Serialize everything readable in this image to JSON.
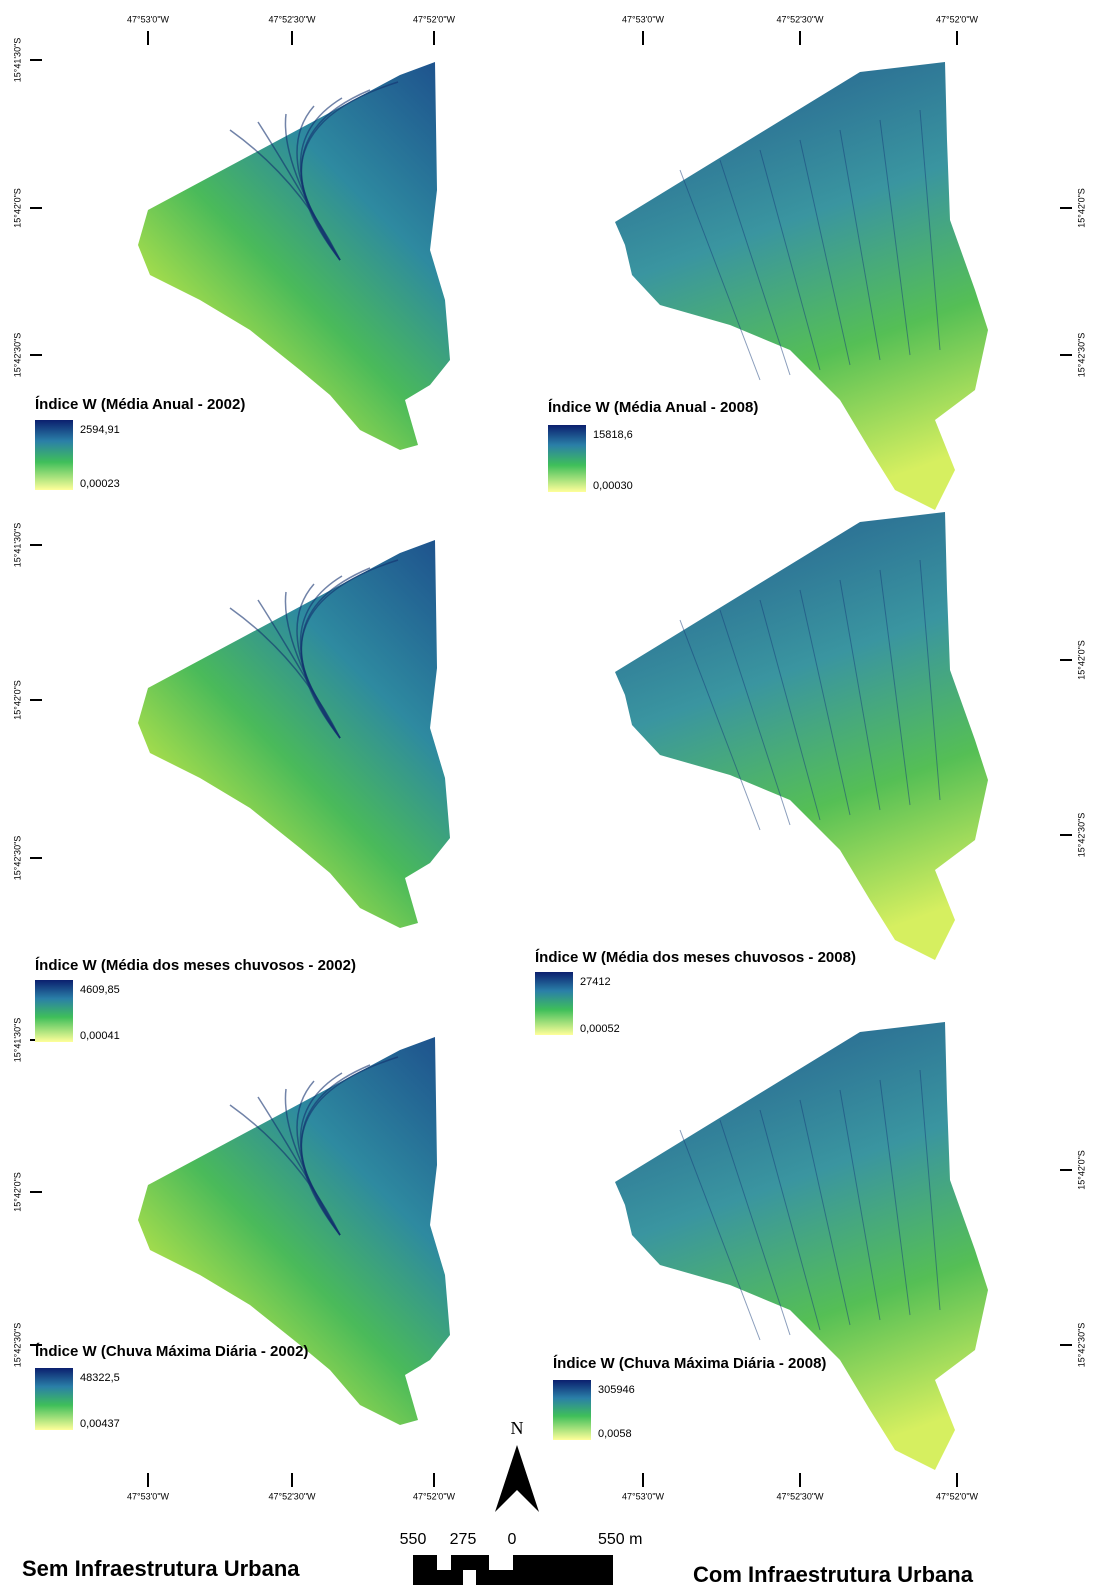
{
  "header_coords": {
    "top_left": [
      "47°53'0\"W",
      "47°52'30\"W",
      "47°52'0\"W"
    ],
    "top_right": [
      "47°53'0\"W",
      "47°52'30\"W",
      "47°52'0\"W"
    ],
    "bottom_left": [
      "47°53'0\"W",
      "47°52'30\"W",
      "47°52'0\"W"
    ],
    "bottom_right": [
      "47°53'0\"W",
      "47°52'30\"W",
      "47°52'0\"W"
    ]
  },
  "left_lat": [
    [
      "15°41'30\"S",
      "15°42'0\"S",
      "15°42'30\"S"
    ],
    [
      "15°41'30\"S",
      "15°42'0\"S",
      "15°42'30\"S"
    ],
    [
      "15°41'30\"S",
      "15°42'0\"S",
      "15°42'30\"S"
    ]
  ],
  "right_lat": [
    [
      "15°42'0\"S",
      "15°42'30\"S"
    ],
    [
      "15°42'0\"S",
      "15°42'30\"S"
    ],
    [
      "15°42'0\"S",
      "15°42'30\"S"
    ]
  ],
  "panels": [
    {
      "title": "Índice W (Média Anual - 2002)",
      "max": "2594,91",
      "min": "0,00023"
    },
    {
      "title": "Índice W (Média Anual - 2008)",
      "max": "15818,6",
      "min": "0,00030"
    },
    {
      "title": "Índice W (Média dos meses chuvosos - 2002)",
      "max": "4609,85",
      "min": "0,00041"
    },
    {
      "title": "Índice W (Média dos meses chuvosos - 2008)",
      "max": "27412",
      "min": "0,00052"
    },
    {
      "title": "Índice W (Chuva Máxima Diária - 2002)",
      "max": "48322,5",
      "min": "0,00437"
    },
    {
      "title": "Índice W (Chuva Máxima Diária - 2008)",
      "max": "305946",
      "min": "0,0058"
    }
  ],
  "captions": {
    "left": "Sem Infraestrutura Urbana",
    "right": "Com Infraestrutura Urbana"
  },
  "north": "N",
  "scale": [
    "550",
    "275",
    "0",
    "550 m"
  ]
}
